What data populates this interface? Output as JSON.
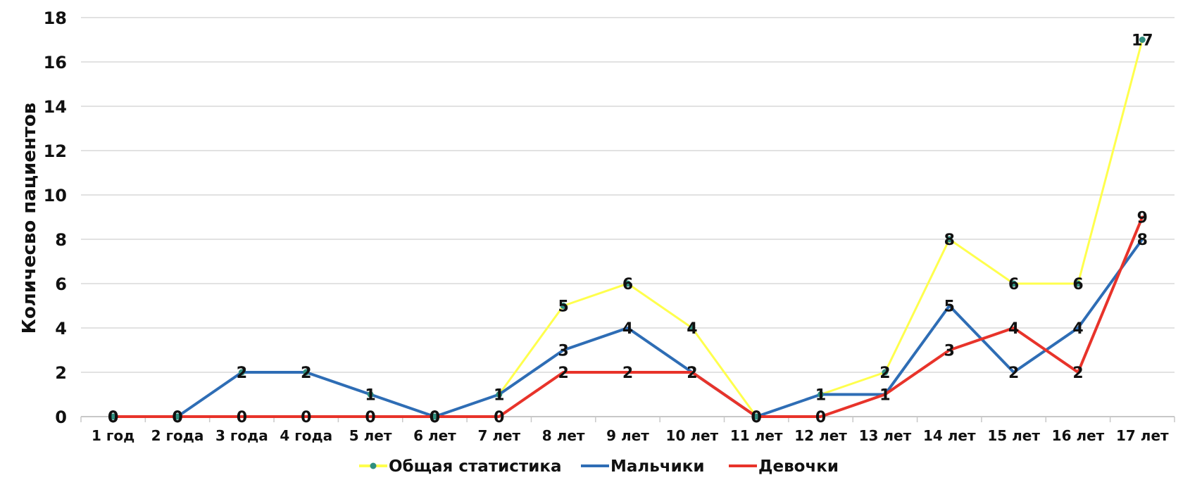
{
  "chart_data": {
    "type": "line",
    "ylabel": "Количесво пациентов",
    "xlabel": "",
    "ylim": [
      0,
      18
    ],
    "yticks": [
      0,
      2,
      4,
      6,
      8,
      10,
      12,
      14,
      16,
      18
    ],
    "grid": true,
    "legend_position": "bottom",
    "categories": [
      "1 год",
      "2 года",
      "3 года",
      "4 года",
      "5 лет",
      "6 лет",
      "7 лет",
      "8 лет",
      "9 лет",
      "10 лет",
      "11 лет",
      "12 лет",
      "13 лет",
      "14 лет",
      "15 лет",
      "16 лет",
      "17 лет"
    ],
    "series": [
      {
        "name": "Общая статистика",
        "color": "#FFFF4D",
        "values": [
          0,
          0,
          2,
          2,
          1,
          0,
          1,
          5,
          6,
          4,
          0,
          1,
          2,
          8,
          6,
          6,
          17
        ]
      },
      {
        "name": "Мальчики",
        "color": "#2E6DB5",
        "values": [
          0,
          0,
          2,
          2,
          1,
          0,
          1,
          3,
          4,
          2,
          0,
          1,
          1,
          5,
          2,
          4,
          8
        ]
      },
      {
        "name": "Девочки",
        "color": "#E8332A",
        "values": [
          0,
          0,
          0,
          0,
          0,
          0,
          0,
          2,
          2,
          2,
          0,
          0,
          1,
          3,
          4,
          2,
          9
        ]
      }
    ]
  }
}
